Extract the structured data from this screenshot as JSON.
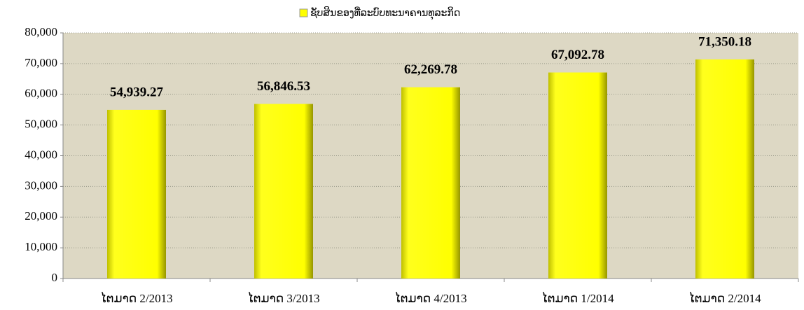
{
  "chart_data": {
    "type": "bar",
    "categories": [
      "ໄຕມາດ 2/2013",
      "ໄຕມາດ 3/2013",
      "ໄຕມາດ 4/2013",
      "ໄຕມາດ 1/2014",
      "ໄຕມາດ 2/2014"
    ],
    "series": [
      {
        "name": "ຊັບສິນຂອງທີ່ລະບົບທະນາຄານທຸລະກິດ",
        "color": "#ffff00",
        "values": [
          54939.27,
          56846.53,
          62269.78,
          67092.78,
          71350.18
        ],
        "value_labels": [
          "54,939.27",
          "56,846.53",
          "62,269.78",
          "67,092.78",
          "71,350.18"
        ]
      }
    ],
    "ylim": [
      0,
      80000
    ],
    "yticks": [
      0,
      {
        "value": 10000,
        "label": "10,000"
      },
      {
        "value": 20000,
        "label": "20,000"
      },
      {
        "value": 30000,
        "label": "30,000"
      },
      {
        "value": 40000,
        "label": "40,000"
      },
      {
        "value": 50000,
        "label": "50,000"
      },
      {
        "value": 60000,
        "label": "60,000"
      },
      {
        "value": 70000,
        "label": "70,000"
      },
      {
        "value": 80000,
        "label": "80,000"
      }
    ],
    "grid": true,
    "legend": "top"
  }
}
